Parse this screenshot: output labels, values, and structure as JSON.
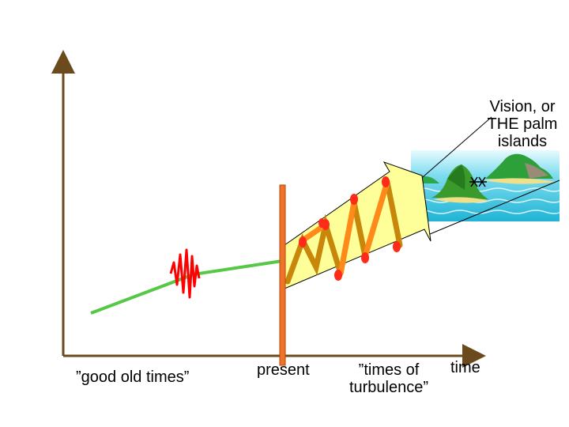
{
  "labels": {
    "vision": "Vision, or\nTHE palm\nislands",
    "good_old_times": "”good old times”",
    "present": "present",
    "turbulence": "”times of\nturbulence”",
    "time_axis": "time"
  },
  "icons": [
    "star-marks-icon",
    "palm-island-icon",
    "zigzag-wave-icon",
    "spring-coil-icon"
  ],
  "colors": {
    "axis": "#6b4a1e",
    "trend": "#55c845",
    "present_bar": "#f07328",
    "arrow_fill": "#ffff99",
    "zigzag": "#ff0000",
    "coil_front": "#ff8a1a",
    "coil_back": "#c8870a",
    "sea": "#40c8e0"
  }
}
